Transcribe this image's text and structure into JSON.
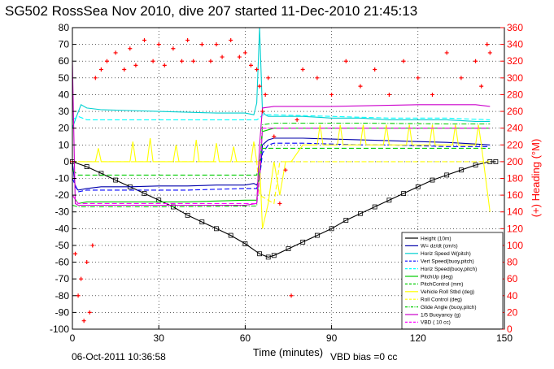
{
  "chart_data": {
    "type": "line",
    "title": "SG502 RossSea Nov 2010, dive 207 started 11-Dec-2010 21:45:13",
    "xlabel": "Time (minutes)",
    "ylabel": "",
    "ylabel_right": "(+) Heading (°M)",
    "xlim": [
      0,
      150
    ],
    "ylim": [
      -100,
      80
    ],
    "ylim_right": [
      0,
      360
    ],
    "xticks": [
      0,
      30,
      60,
      90,
      120,
      150
    ],
    "yticks": [
      -100,
      -90,
      -80,
      -70,
      -60,
      -50,
      -40,
      -30,
      -20,
      -10,
      0,
      10,
      20,
      30,
      40,
      50,
      60,
      70,
      80
    ],
    "yticks_right": [
      0,
      20,
      40,
      60,
      80,
      100,
      120,
      140,
      160,
      180,
      200,
      220,
      240,
      260,
      280,
      300,
      320,
      340,
      360
    ],
    "grid": true,
    "legend_position": "bottom-right",
    "footer_left": "06-Oct-2011 10:36:58",
    "footer_right": "VBD bias =0 cc",
    "legend": [
      {
        "label": "Height (10m)",
        "color": "#000000",
        "style": "solid"
      },
      {
        "label": "W= dz/dt (cm/s)",
        "color": "#0000aa",
        "style": "solid"
      },
      {
        "label": "Horiz Speed W(pitch)",
        "color": "#00d0d0",
        "style": "solid"
      },
      {
        "label": "Vert Speed(buoy,pitch)",
        "color": "#0000ff",
        "style": "dashed"
      },
      {
        "label": "Horiz Speed(buoy,pitch)",
        "color": "#00ffff",
        "style": "dashed"
      },
      {
        "label": "PitchUp (deg)",
        "color": "#00cc00",
        "style": "solid"
      },
      {
        "label": "PitchControl (mm)",
        "color": "#00cc00",
        "style": "dashed"
      },
      {
        "label": "Vehicle Roll Stbd (deg)",
        "color": "#ffff00",
        "style": "solid"
      },
      {
        "label": "Roll Control (deg)",
        "color": "#ffff00",
        "style": "dashed"
      },
      {
        "label": "Glide Angle (buoy,pitch)",
        "color": "#00cc00",
        "style": "dashdot"
      },
      {
        "label": "1/5 Buoyancy (g)",
        "color": "#cc00cc",
        "style": "solid"
      },
      {
        "label": "VBD ( 10 cc)",
        "color": "#ff00ff",
        "style": "dashed"
      }
    ],
    "series": [
      {
        "name": "Height (10m)",
        "color": "#000000",
        "axis": "left",
        "x": [
          0,
          5,
          10,
          15,
          20,
          25,
          30,
          35,
          40,
          45,
          50,
          55,
          60,
          65,
          68,
          70,
          75,
          80,
          85,
          90,
          95,
          100,
          105,
          110,
          115,
          120,
          125,
          130,
          135,
          140,
          145,
          147
        ],
        "y": [
          0,
          -3,
          -7,
          -11,
          -15,
          -19,
          -23,
          -27,
          -32,
          -36,
          -40,
          -44,
          -49,
          -55,
          -57,
          -56,
          -52,
          -48,
          -44,
          -40,
          -35,
          -31,
          -27,
          -23,
          -19,
          -15,
          -11,
          -8,
          -5,
          -2,
          0,
          0
        ]
      },
      {
        "name": "W= dz/dt (cm/s)",
        "color": "#0000aa",
        "axis": "left",
        "x": [
          0,
          1,
          2,
          5,
          10,
          20,
          30,
          40,
          50,
          60,
          63,
          64,
          65,
          66,
          68,
          70,
          80,
          90,
          100,
          110,
          120,
          130,
          140,
          145
        ],
        "y": [
          0,
          -15,
          -17,
          -16,
          -15,
          -15,
          -14.5,
          -14.5,
          -14,
          -14,
          -13,
          -14,
          -10,
          10,
          13,
          14,
          14,
          13.5,
          13,
          12.5,
          12,
          11.5,
          10.5,
          10
        ]
      },
      {
        "name": "Horiz Speed W(pitch)",
        "color": "#00d0d0",
        "axis": "left",
        "x": [
          0,
          1,
          3,
          5,
          10,
          20,
          30,
          40,
          50,
          60,
          63,
          64,
          65,
          66,
          67,
          68,
          70,
          80,
          90,
          100,
          110,
          120,
          130,
          140,
          145
        ],
        "y": [
          20,
          25,
          34,
          32,
          31,
          30.5,
          30,
          29.5,
          29,
          29,
          28,
          35,
          80,
          30,
          28,
          27,
          27,
          27,
          26,
          26,
          25,
          25,
          25,
          24,
          24
        ]
      },
      {
        "name": "Vert Speed(buoy,pitch)",
        "color": "#0000ff",
        "axis": "left",
        "x": [
          0,
          2,
          5,
          10,
          20,
          30,
          40,
          50,
          60,
          64,
          65,
          66,
          68,
          70,
          80,
          90,
          100,
          110,
          120,
          130,
          140,
          145
        ],
        "y": [
          -10,
          -18,
          -17,
          -17,
          -17,
          -17,
          -17,
          -16.5,
          -16,
          -16,
          -10,
          5,
          10,
          11,
          11,
          10.5,
          10,
          10,
          9.5,
          9,
          9,
          9
        ]
      },
      {
        "name": "Horiz Speed(buoy,pitch)",
        "color": "#00ffff",
        "axis": "left",
        "x": [
          0,
          2,
          5,
          20,
          40,
          60,
          64,
          65,
          66,
          70,
          90,
          110,
          130,
          145
        ],
        "y": [
          25,
          27,
          25,
          25,
          25,
          25,
          25,
          26,
          28,
          28,
          27,
          26,
          26,
          25
        ]
      },
      {
        "name": "PitchUp (deg)",
        "color": "#00cc00",
        "axis": "left",
        "x": [
          0,
          2,
          5,
          20,
          40,
          60,
          64,
          65,
          66,
          70,
          90,
          110,
          130,
          145
        ],
        "y": [
          -20,
          -25,
          -24,
          -24,
          -24,
          -23,
          -23,
          -5,
          18,
          20,
          20,
          20,
          20,
          20
        ]
      },
      {
        "name": "PitchControl (mm)",
        "color": "#00cc00",
        "axis": "left",
        "x": [
          0,
          2,
          5,
          30,
          60,
          64,
          65,
          66,
          70,
          100,
          130,
          145
        ],
        "y": [
          -5,
          -8,
          -8,
          -8,
          -8,
          -8,
          0,
          8,
          8,
          8,
          8,
          8
        ]
      },
      {
        "name": "Glide Angle (buoy,pitch)",
        "color": "#00cc00",
        "axis": "left",
        "x": [
          0,
          2,
          5,
          30,
          60,
          64,
          65,
          66,
          70,
          100,
          130,
          145
        ],
        "y": [
          -26,
          -27,
          -27,
          -27,
          -26.5,
          -26.5,
          -5,
          22,
          23,
          23,
          22.5,
          22.5
        ]
      },
      {
        "name": "Vehicle Roll Stbd (deg)",
        "color": "#ffff00",
        "axis": "left",
        "x": [
          2,
          5,
          8,
          9,
          10,
          11,
          15,
          20,
          21,
          22,
          26,
          27,
          28,
          35,
          36,
          37,
          42,
          43,
          44,
          49,
          50,
          51,
          55,
          56,
          57,
          62,
          63,
          64,
          65,
          66,
          68,
          70,
          72,
          74,
          76,
          80,
          85,
          86,
          87,
          92,
          93,
          94,
          100,
          101,
          102,
          108,
          109,
          110,
          116,
          117,
          118,
          124,
          125,
          126,
          132,
          133,
          134,
          140,
          141,
          142,
          145
        ],
        "y": [
          0,
          0,
          0,
          8,
          0,
          0,
          0,
          0,
          12,
          0,
          0,
          14,
          0,
          0,
          10,
          0,
          0,
          13,
          0,
          0,
          11,
          0,
          0,
          9,
          0,
          0,
          12,
          0,
          0,
          -40,
          -25,
          0,
          -20,
          0,
          0,
          10,
          10,
          22,
          10,
          10,
          22,
          10,
          10,
          22,
          10,
          10,
          22,
          10,
          10,
          22,
          10,
          10,
          22,
          10,
          10,
          22,
          10,
          10,
          22,
          10,
          -30
        ]
      },
      {
        "name": "Roll Control (deg)",
        "color": "#ffff00",
        "axis": "left",
        "x": [
          0,
          30,
          64,
          65,
          70,
          72,
          145
        ],
        "y": [
          0,
          0,
          0,
          -20,
          -25,
          0,
          0
        ]
      },
      {
        "name": "1/5 Buoyancy (g)",
        "color": "#cc00cc",
        "axis": "left",
        "x": [
          0,
          1,
          2,
          5,
          10,
          30,
          60,
          64,
          65,
          66,
          70,
          90,
          120,
          140,
          145
        ],
        "y": [
          60,
          -25,
          -26,
          -26,
          -26,
          -26,
          -26,
          -25,
          10,
          32,
          33,
          33,
          34,
          34,
          33
        ]
      },
      {
        "name": "VBD ( 10 cc)",
        "color": "#ff00ff",
        "axis": "left",
        "x": [
          0,
          2,
          5,
          30,
          64,
          65,
          66,
          70,
          145
        ],
        "y": [
          -20,
          -25,
          -25,
          -25,
          -25,
          -10,
          20,
          20,
          20
        ]
      },
      {
        "name": "Heading",
        "color": "#ff0000",
        "axis": "right",
        "marker": "+",
        "x": [
          0,
          1,
          2,
          3,
          4,
          5,
          6,
          7,
          8,
          10,
          12,
          15,
          18,
          20,
          22,
          25,
          28,
          30,
          32,
          35,
          38,
          40,
          42,
          45,
          48,
          50,
          52,
          55,
          58,
          60,
          62,
          64,
          65,
          66,
          67,
          68,
          70,
          72,
          74,
          76,
          78,
          80,
          85,
          90,
          95,
          100,
          105,
          110,
          115,
          120,
          125,
          130,
          135,
          140,
          142,
          144,
          145
        ],
        "y": [
          200,
          90,
          40,
          60,
          10,
          80,
          20,
          100,
          300,
          310,
          320,
          330,
          310,
          335,
          315,
          345,
          320,
          340,
          315,
          335,
          320,
          345,
          320,
          340,
          320,
          340,
          325,
          345,
          325,
          330,
          315,
          310,
          290,
          260,
          280,
          300,
          230,
          150,
          190,
          40,
          250,
          310,
          300,
          280,
          320,
          290,
          310,
          280,
          320,
          300,
          280,
          330,
          300,
          320,
          290,
          340,
          330
        ]
      }
    ]
  }
}
